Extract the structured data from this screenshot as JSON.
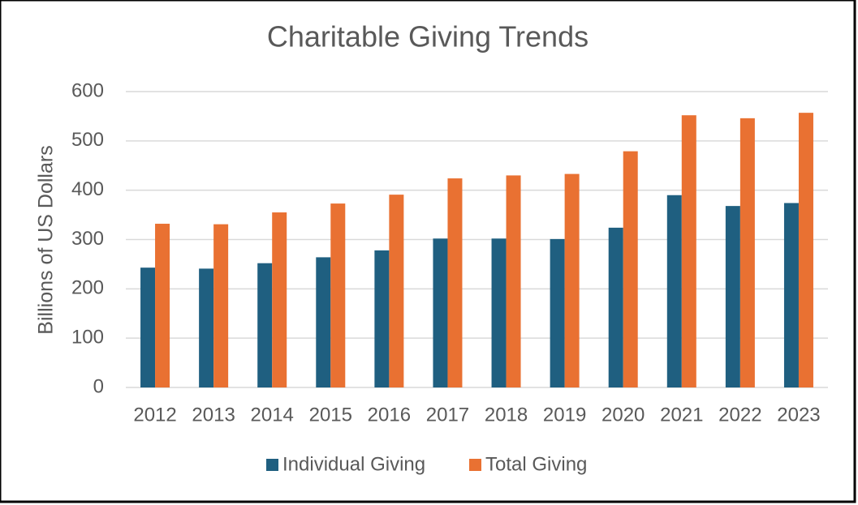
{
  "chart_data": {
    "type": "bar",
    "title": "Charitable Giving Trends",
    "y_label": "Billions of US Dollars",
    "categories": [
      "2012",
      "2013",
      "2014",
      "2015",
      "2016",
      "2017",
      "2018",
      "2019",
      "2020",
      "2021",
      "2022",
      "2023"
    ],
    "series": [
      {
        "name": "Individual Giving",
        "color": "#1f5f80",
        "values": [
          243,
          241,
          252,
          264,
          278,
          302,
          302,
          301,
          324,
          390,
          368,
          374
        ]
      },
      {
        "name": "Total Giving",
        "color": "#e97132",
        "values": [
          332,
          331,
          355,
          373,
          391,
          424,
          430,
          433,
          479,
          552,
          546,
          557
        ]
      }
    ],
    "ylim": [
      0,
      600
    ],
    "yticks": [
      0,
      100,
      200,
      300,
      400,
      500,
      600
    ],
    "grid": true,
    "legend": "bottom"
  }
}
